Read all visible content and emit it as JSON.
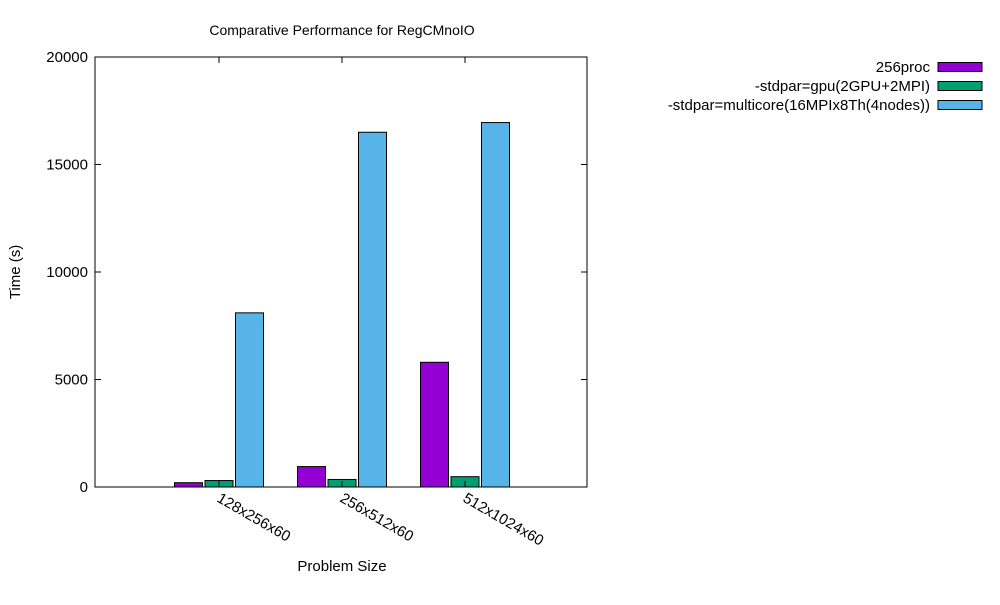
{
  "chart_data": {
    "type": "bar",
    "title": "Comparative Performance for RegCMnoIO",
    "xlabel": "Problem Size",
    "ylabel": "Time (s)",
    "ylim": [
      0,
      20000
    ],
    "yticks": [
      0,
      5000,
      10000,
      15000,
      20000
    ],
    "grid": false,
    "legend_position": "top-right",
    "categories": [
      "128x256x60",
      "256x512x60",
      "512x1024x60"
    ],
    "series": [
      {
        "name": "256proc",
        "color": "#9400d3",
        "values": [
          200,
          950,
          5800
        ]
      },
      {
        "name": "-stdpar=gpu(2GPU+2MPI)",
        "color": "#009e73",
        "values": [
          300,
          350,
          480
        ]
      },
      {
        "name": "-stdpar=multicore(16MPIx8Th(4nodes))",
        "color": "#56b4e9",
        "values": [
          8100,
          16500,
          16950
        ]
      }
    ]
  }
}
